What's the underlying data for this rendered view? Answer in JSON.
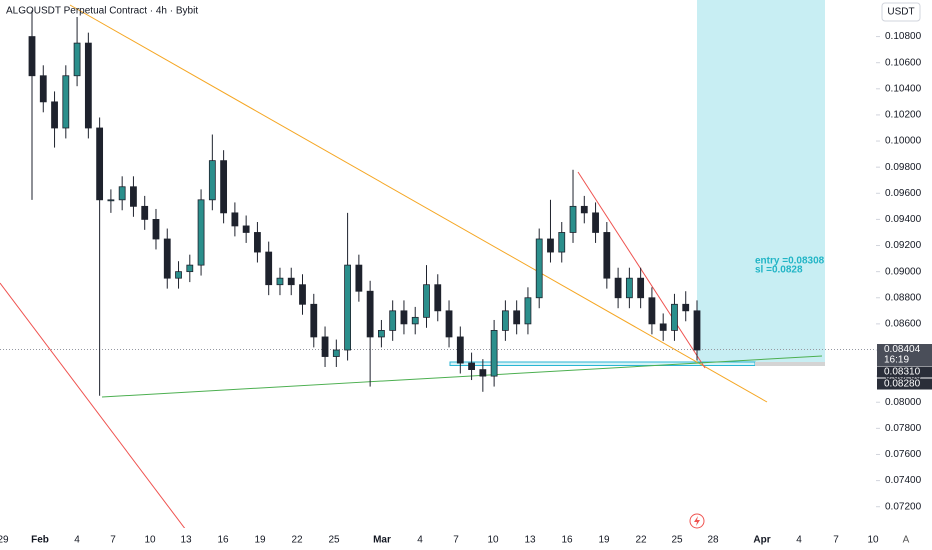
{
  "chart_data": {
    "type": "candlestick",
    "title": "ALGOUSDT Perpetual Contract · 4h · Bybit",
    "quote_currency": "USDT",
    "up_color": "#2b8f8c",
    "down_color": "#1e222d",
    "open": [
      0.108,
      0.105,
      0.103,
      0.101,
      0.105,
      0.1075,
      0.101,
      0.0955,
      0.0955,
      0.0965,
      0.095,
      0.094,
      0.0925,
      0.0895,
      0.09,
      0.0905,
      0.0955,
      0.0985,
      0.0945,
      0.0935,
      0.093,
      0.0915,
      0.089,
      0.0895,
      0.089,
      0.0875,
      0.085,
      0.0835,
      0.084,
      0.0905,
      0.0885,
      0.085,
      0.0855,
      0.087,
      0.086,
      0.0865,
      0.089,
      0.087,
      0.085,
      0.083,
      0.0825,
      0.082,
      0.0855,
      0.087,
      0.086,
      0.088,
      0.0925,
      0.0915,
      0.093,
      0.095,
      0.0945,
      0.093,
      0.0895,
      0.088,
      0.0895,
      0.088,
      0.086,
      0.0855,
      0.0875,
      0.087
    ],
    "high": [
      0.11,
      0.1058,
      0.1038,
      0.1058,
      0.1095,
      0.1083,
      0.1018,
      0.0963,
      0.0973,
      0.0973,
      0.0958,
      0.0948,
      0.0933,
      0.0908,
      0.0913,
      0.0963,
      0.1005,
      0.0993,
      0.0953,
      0.0943,
      0.0938,
      0.0923,
      0.0903,
      0.0903,
      0.0898,
      0.0883,
      0.0858,
      0.0848,
      0.0945,
      0.0913,
      0.0893,
      0.0863,
      0.0878,
      0.0878,
      0.0873,
      0.0905,
      0.0898,
      0.0878,
      0.0858,
      0.0838,
      0.0833,
      0.0863,
      0.0878,
      0.0878,
      0.0888,
      0.0933,
      0.0955,
      0.0938,
      0.0978,
      0.0958,
      0.0953,
      0.0938,
      0.0903,
      0.0903,
      0.0903,
      0.0888,
      0.0868,
      0.0883,
      0.0885,
      0.0878
    ],
    "low": [
      0.0955,
      0.1022,
      0.0995,
      0.1002,
      0.1042,
      0.1002,
      0.0805,
      0.0945,
      0.0947,
      0.0942,
      0.0932,
      0.0917,
      0.0887,
      0.0887,
      0.0892,
      0.0897,
      0.0947,
      0.0937,
      0.0927,
      0.0922,
      0.0907,
      0.0882,
      0.0882,
      0.0882,
      0.0867,
      0.0842,
      0.0827,
      0.0827,
      0.0832,
      0.0877,
      0.0812,
      0.0842,
      0.0847,
      0.0852,
      0.0852,
      0.0857,
      0.0862,
      0.0842,
      0.0822,
      0.0817,
      0.0808,
      0.0812,
      0.0847,
      0.0852,
      0.0852,
      0.0872,
      0.0907,
      0.0907,
      0.0922,
      0.0937,
      0.0922,
      0.0887,
      0.0872,
      0.0872,
      0.0872,
      0.0852,
      0.0847,
      0.0847,
      0.0862,
      0.0832
    ],
    "close": [
      0.105,
      0.103,
      0.101,
      0.105,
      0.1075,
      0.101,
      0.0955,
      0.0955,
      0.0965,
      0.095,
      0.094,
      0.0925,
      0.0895,
      0.09,
      0.0905,
      0.0955,
      0.0985,
      0.0945,
      0.0935,
      0.093,
      0.0915,
      0.089,
      0.0895,
      0.089,
      0.0875,
      0.085,
      0.0835,
      0.084,
      0.0905,
      0.0885,
      0.085,
      0.0855,
      0.087,
      0.086,
      0.0865,
      0.089,
      0.087,
      0.085,
      0.083,
      0.0825,
      0.082,
      0.0855,
      0.087,
      0.086,
      0.088,
      0.0925,
      0.0915,
      0.093,
      0.095,
      0.0945,
      0.093,
      0.0895,
      0.088,
      0.0895,
      0.088,
      0.086,
      0.0855,
      0.0875,
      0.087,
      0.084
    ],
    "ylim": [
      0.0706,
      0.1108
    ],
    "yticks": [
      {
        "value": 0.072,
        "label": "0.07200"
      },
      {
        "value": 0.074,
        "label": "0.07400"
      },
      {
        "value": 0.076,
        "label": "0.07600"
      },
      {
        "value": 0.078,
        "label": "0.07800"
      },
      {
        "value": 0.08,
        "label": "0.08000"
      },
      {
        "value": 0.082,
        "label": "0.08200"
      },
      {
        "value": 0.084,
        "label": "0.08400"
      },
      {
        "value": 0.086,
        "label": "0.08600"
      },
      {
        "value": 0.088,
        "label": "0.08800"
      },
      {
        "value": 0.09,
        "label": "0.09000"
      },
      {
        "value": 0.092,
        "label": "0.09200"
      },
      {
        "value": 0.094,
        "label": "0.09400"
      },
      {
        "value": 0.096,
        "label": "0.09600"
      },
      {
        "value": 0.098,
        "label": "0.09800"
      },
      {
        "value": 0.1,
        "label": "0.10000"
      },
      {
        "value": 0.102,
        "label": "0.10200"
      },
      {
        "value": 0.104,
        "label": "0.10400"
      },
      {
        "value": 0.106,
        "label": "0.10600"
      },
      {
        "value": 0.108,
        "label": "0.10800"
      }
    ],
    "x_labels": [
      "29",
      "Feb",
      "4",
      "7",
      "10",
      "13",
      "16",
      "19",
      "22",
      "25",
      "Mar",
      "4",
      "7",
      "10",
      "13",
      "16",
      "19",
      "22",
      "25",
      "28",
      "Apr",
      "4",
      "7",
      "10"
    ],
    "price_labels": [
      {
        "value": 0.08404,
        "label": "0.08404"
      },
      {
        "value": 0.0831,
        "label": "0.08310"
      },
      {
        "value": 0.0828,
        "label": "0.08280"
      }
    ],
    "countdown": "16:19",
    "annotations": [
      "entry =0.08308",
      "sl =0.0828"
    ]
  },
  "ui": {
    "auto_button": "A"
  }
}
